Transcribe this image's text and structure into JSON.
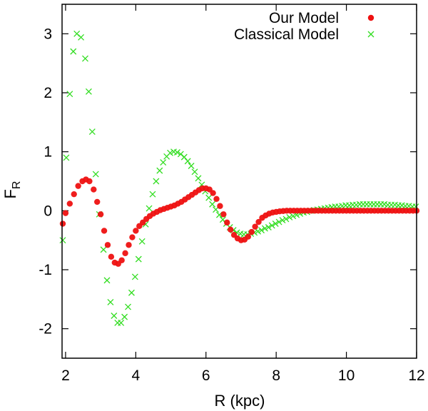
{
  "chart_data": {
    "type": "scatter",
    "title": "",
    "xlabel": "R (kpc)",
    "ylabel_main": "F",
    "ylabel_sub": "R",
    "xlim": [
      1.9,
      12
    ],
    "ylim": [
      -2.5,
      3.5
    ],
    "xticks": [
      2,
      4,
      6,
      8,
      10,
      12
    ],
    "yticks": [
      -2,
      -1,
      0,
      1,
      2,
      3
    ],
    "xtick_labels": [
      "2",
      "4",
      "6",
      "8",
      "10",
      "12"
    ],
    "ytick_labels": [
      "-2",
      "-1",
      "0",
      "1",
      "2",
      "3"
    ],
    "legend_position": "top-right",
    "series": [
      {
        "name": "Our Model",
        "marker": "circle",
        "color": "#ee1111",
        "points": [
          [
            1.92,
            -0.22
          ],
          [
            2.0,
            -0.04
          ],
          [
            2.12,
            0.12
          ],
          [
            2.24,
            0.28
          ],
          [
            2.36,
            0.42
          ],
          [
            2.48,
            0.5
          ],
          [
            2.58,
            0.53
          ],
          [
            2.68,
            0.5
          ],
          [
            2.8,
            0.36
          ],
          [
            2.9,
            0.15
          ],
          [
            3.0,
            -0.06
          ],
          [
            3.1,
            -0.34
          ],
          [
            3.2,
            -0.58
          ],
          [
            3.3,
            -0.78
          ],
          [
            3.4,
            -0.88
          ],
          [
            3.5,
            -0.9
          ],
          [
            3.6,
            -0.84
          ],
          [
            3.7,
            -0.72
          ],
          [
            3.8,
            -0.58
          ],
          [
            3.9,
            -0.45
          ],
          [
            4.0,
            -0.34
          ],
          [
            4.1,
            -0.26
          ],
          [
            4.2,
            -0.2
          ],
          [
            4.3,
            -0.14
          ],
          [
            4.4,
            -0.09
          ],
          [
            4.5,
            -0.05
          ],
          [
            4.6,
            -0.02
          ],
          [
            4.7,
            0.01
          ],
          [
            4.8,
            0.03
          ],
          [
            4.9,
            0.05
          ],
          [
            5.0,
            0.07
          ],
          [
            5.1,
            0.09
          ],
          [
            5.2,
            0.12
          ],
          [
            5.3,
            0.15
          ],
          [
            5.4,
            0.19
          ],
          [
            5.5,
            0.23
          ],
          [
            5.6,
            0.27
          ],
          [
            5.7,
            0.31
          ],
          [
            5.8,
            0.35
          ],
          [
            5.9,
            0.38
          ],
          [
            6.0,
            0.38
          ],
          [
            6.1,
            0.36
          ],
          [
            6.2,
            0.3
          ],
          [
            6.3,
            0.2
          ],
          [
            6.4,
            0.08
          ],
          [
            6.5,
            -0.06
          ],
          [
            6.6,
            -0.2
          ],
          [
            6.7,
            -0.32
          ],
          [
            6.8,
            -0.41
          ],
          [
            6.9,
            -0.47
          ],
          [
            7.0,
            -0.5
          ],
          [
            7.1,
            -0.49
          ],
          [
            7.2,
            -0.44
          ],
          [
            7.3,
            -0.36
          ],
          [
            7.4,
            -0.27
          ],
          [
            7.5,
            -0.19
          ],
          [
            7.6,
            -0.12
          ],
          [
            7.7,
            -0.08
          ],
          [
            7.8,
            -0.05
          ],
          [
            7.9,
            -0.03
          ],
          [
            8.0,
            -0.02
          ],
          [
            8.1,
            -0.01
          ],
          [
            8.2,
            -0.005
          ],
          [
            8.3,
            0.0
          ],
          [
            8.4,
            0.0
          ],
          [
            8.5,
            0.0
          ],
          [
            8.6,
            0.0
          ],
          [
            8.7,
            0.0
          ],
          [
            8.8,
            0.0
          ],
          [
            8.9,
            0.0
          ],
          [
            9.0,
            0.0
          ],
          [
            9.1,
            0.0
          ],
          [
            9.2,
            0.0
          ],
          [
            9.3,
            0.0
          ],
          [
            9.4,
            0.0
          ],
          [
            9.5,
            0.0
          ],
          [
            9.6,
            0.0
          ],
          [
            9.7,
            0.0
          ],
          [
            9.8,
            0.0
          ],
          [
            9.9,
            0.0
          ],
          [
            10.0,
            0.0
          ],
          [
            10.1,
            0.0
          ],
          [
            10.2,
            0.0
          ],
          [
            10.3,
            0.0
          ],
          [
            10.4,
            0.0
          ],
          [
            10.5,
            0.0
          ],
          [
            10.6,
            0.0
          ],
          [
            10.7,
            0.0
          ],
          [
            10.8,
            0.0
          ],
          [
            10.9,
            0.0
          ],
          [
            11.0,
            0.0
          ],
          [
            11.1,
            0.0
          ],
          [
            11.2,
            0.0
          ],
          [
            11.3,
            0.0
          ],
          [
            11.4,
            0.0
          ],
          [
            11.5,
            0.0
          ],
          [
            11.6,
            0.0
          ],
          [
            11.7,
            0.0
          ],
          [
            11.8,
            0.0
          ],
          [
            11.9,
            0.0
          ],
          [
            12.0,
            0.0
          ]
        ]
      },
      {
        "name": "Classical Model",
        "marker": "cross",
        "color": "#33dd22",
        "points": [
          [
            1.92,
            -0.5
          ],
          [
            2.02,
            0.9
          ],
          [
            2.12,
            1.98
          ],
          [
            2.22,
            2.7
          ],
          [
            2.32,
            3.0
          ],
          [
            2.44,
            2.94
          ],
          [
            2.56,
            2.58
          ],
          [
            2.66,
            2.02
          ],
          [
            2.76,
            1.34
          ],
          [
            2.86,
            0.62
          ],
          [
            2.96,
            -0.06
          ],
          [
            3.08,
            -0.66
          ],
          [
            3.18,
            -1.18
          ],
          [
            3.28,
            -1.55
          ],
          [
            3.38,
            -1.78
          ],
          [
            3.48,
            -1.9
          ],
          [
            3.58,
            -1.9
          ],
          [
            3.68,
            -1.8
          ],
          [
            3.78,
            -1.63
          ],
          [
            3.88,
            -1.39
          ],
          [
            3.98,
            -1.12
          ],
          [
            4.08,
            -0.82
          ],
          [
            4.18,
            -0.52
          ],
          [
            4.28,
            -0.23
          ],
          [
            4.38,
            0.04
          ],
          [
            4.48,
            0.28
          ],
          [
            4.58,
            0.5
          ],
          [
            4.68,
            0.68
          ],
          [
            4.78,
            0.82
          ],
          [
            4.88,
            0.92
          ],
          [
            4.98,
            0.98
          ],
          [
            5.08,
            1.0
          ],
          [
            5.18,
            0.99
          ],
          [
            5.28,
            0.96
          ],
          [
            5.38,
            0.91
          ],
          [
            5.48,
            0.84
          ],
          [
            5.58,
            0.76
          ],
          [
            5.68,
            0.66
          ],
          [
            5.78,
            0.55
          ],
          [
            5.88,
            0.44
          ],
          [
            5.98,
            0.33
          ],
          [
            6.08,
            0.22
          ],
          [
            6.18,
            0.11
          ],
          [
            6.28,
            0.02
          ],
          [
            6.38,
            -0.07
          ],
          [
            6.48,
            -0.15
          ],
          [
            6.58,
            -0.22
          ],
          [
            6.68,
            -0.28
          ],
          [
            6.78,
            -0.33
          ],
          [
            6.88,
            -0.37
          ],
          [
            6.98,
            -0.39
          ],
          [
            7.08,
            -0.4
          ],
          [
            7.18,
            -0.4
          ],
          [
            7.28,
            -0.39
          ],
          [
            7.38,
            -0.37
          ],
          [
            7.48,
            -0.35
          ],
          [
            7.58,
            -0.33
          ],
          [
            7.68,
            -0.3
          ],
          [
            7.78,
            -0.28
          ],
          [
            7.88,
            -0.25
          ],
          [
            7.98,
            -0.22
          ],
          [
            8.08,
            -0.19
          ],
          [
            8.18,
            -0.16
          ],
          [
            8.28,
            -0.14
          ],
          [
            8.38,
            -0.11
          ],
          [
            8.48,
            -0.09
          ],
          [
            8.58,
            -0.07
          ],
          [
            8.68,
            -0.05
          ],
          [
            8.78,
            -0.03
          ],
          [
            8.88,
            -0.02
          ],
          [
            8.98,
            0.0
          ],
          [
            9.08,
            0.01
          ],
          [
            9.18,
            0.02
          ],
          [
            9.28,
            0.03
          ],
          [
            9.38,
            0.04
          ],
          [
            9.48,
            0.05
          ],
          [
            9.58,
            0.06
          ],
          [
            9.68,
            0.07
          ],
          [
            9.78,
            0.07
          ],
          [
            9.88,
            0.08
          ],
          [
            9.98,
            0.09
          ],
          [
            10.08,
            0.09
          ],
          [
            10.18,
            0.1
          ],
          [
            10.28,
            0.1
          ],
          [
            10.38,
            0.11
          ],
          [
            10.48,
            0.11
          ],
          [
            10.58,
            0.11
          ],
          [
            10.68,
            0.11
          ],
          [
            10.78,
            0.11
          ],
          [
            10.88,
            0.11
          ],
          [
            10.98,
            0.11
          ],
          [
            11.08,
            0.11
          ],
          [
            11.18,
            0.1
          ],
          [
            11.28,
            0.1
          ],
          [
            11.38,
            0.1
          ],
          [
            11.48,
            0.09
          ],
          [
            11.58,
            0.09
          ],
          [
            11.68,
            0.08
          ],
          [
            11.78,
            0.08
          ],
          [
            11.88,
            0.07
          ],
          [
            11.98,
            0.07
          ]
        ]
      }
    ]
  }
}
